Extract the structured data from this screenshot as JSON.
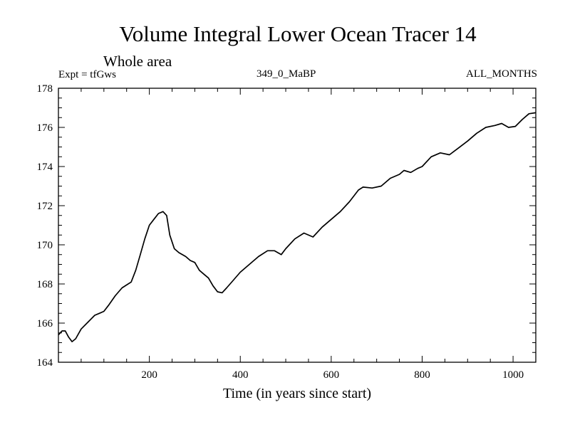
{
  "chart_data": {
    "type": "line",
    "title": "Volume Integral Lower Ocean Tracer 14",
    "subtitle": "Whole area",
    "left_label": "Expt = tfGws",
    "center_label": "349_0_MaBP",
    "right_label": "ALL_MONTHS",
    "xlabel": "Time (in years since start)",
    "ylabel": "",
    "xlim": [
      0,
      1050
    ],
    "ylim": [
      164,
      178
    ],
    "x_ticks": [
      200,
      400,
      600,
      800,
      1000
    ],
    "y_ticks": [
      164,
      166,
      168,
      170,
      172,
      174,
      176,
      178
    ],
    "grid": false,
    "series": [
      {
        "name": "tfGws",
        "color": "#000000",
        "points": [
          [
            0,
            165.4
          ],
          [
            8,
            165.6
          ],
          [
            15,
            165.6
          ],
          [
            22,
            165.3
          ],
          [
            30,
            165.05
          ],
          [
            38,
            165.2
          ],
          [
            50,
            165.7
          ],
          [
            65,
            166.05
          ],
          [
            80,
            166.4
          ],
          [
            90,
            166.5
          ],
          [
            100,
            166.6
          ],
          [
            110,
            166.9
          ],
          [
            125,
            167.4
          ],
          [
            140,
            167.8
          ],
          [
            150,
            167.95
          ],
          [
            160,
            168.1
          ],
          [
            170,
            168.7
          ],
          [
            180,
            169.5
          ],
          [
            190,
            170.3
          ],
          [
            200,
            171.0
          ],
          [
            210,
            171.3
          ],
          [
            220,
            171.6
          ],
          [
            230,
            171.7
          ],
          [
            238,
            171.5
          ],
          [
            245,
            170.5
          ],
          [
            255,
            169.8
          ],
          [
            265,
            169.6
          ],
          [
            280,
            169.4
          ],
          [
            290,
            169.2
          ],
          [
            300,
            169.1
          ],
          [
            310,
            168.7
          ],
          [
            320,
            168.5
          ],
          [
            330,
            168.3
          ],
          [
            340,
            167.9
          ],
          [
            350,
            167.6
          ],
          [
            360,
            167.55
          ],
          [
            370,
            167.8
          ],
          [
            385,
            168.2
          ],
          [
            400,
            168.6
          ],
          [
            420,
            169.0
          ],
          [
            440,
            169.4
          ],
          [
            460,
            169.7
          ],
          [
            475,
            169.7
          ],
          [
            490,
            169.5
          ],
          [
            500,
            169.8
          ],
          [
            520,
            170.3
          ],
          [
            540,
            170.6
          ],
          [
            560,
            170.4
          ],
          [
            580,
            170.9
          ],
          [
            600,
            171.3
          ],
          [
            620,
            171.7
          ],
          [
            640,
            172.2
          ],
          [
            660,
            172.8
          ],
          [
            670,
            172.95
          ],
          [
            690,
            172.9
          ],
          [
            710,
            173.0
          ],
          [
            730,
            173.4
          ],
          [
            750,
            173.6
          ],
          [
            760,
            173.8
          ],
          [
            775,
            173.7
          ],
          [
            790,
            173.9
          ],
          [
            800,
            174.0
          ],
          [
            820,
            174.5
          ],
          [
            840,
            174.7
          ],
          [
            860,
            174.6
          ],
          [
            880,
            174.95
          ],
          [
            900,
            175.3
          ],
          [
            920,
            175.7
          ],
          [
            940,
            176.0
          ],
          [
            960,
            176.1
          ],
          [
            975,
            176.2
          ],
          [
            990,
            176.0
          ],
          [
            1005,
            176.05
          ],
          [
            1020,
            176.4
          ],
          [
            1035,
            176.7
          ],
          [
            1050,
            176.75
          ]
        ]
      }
    ]
  }
}
